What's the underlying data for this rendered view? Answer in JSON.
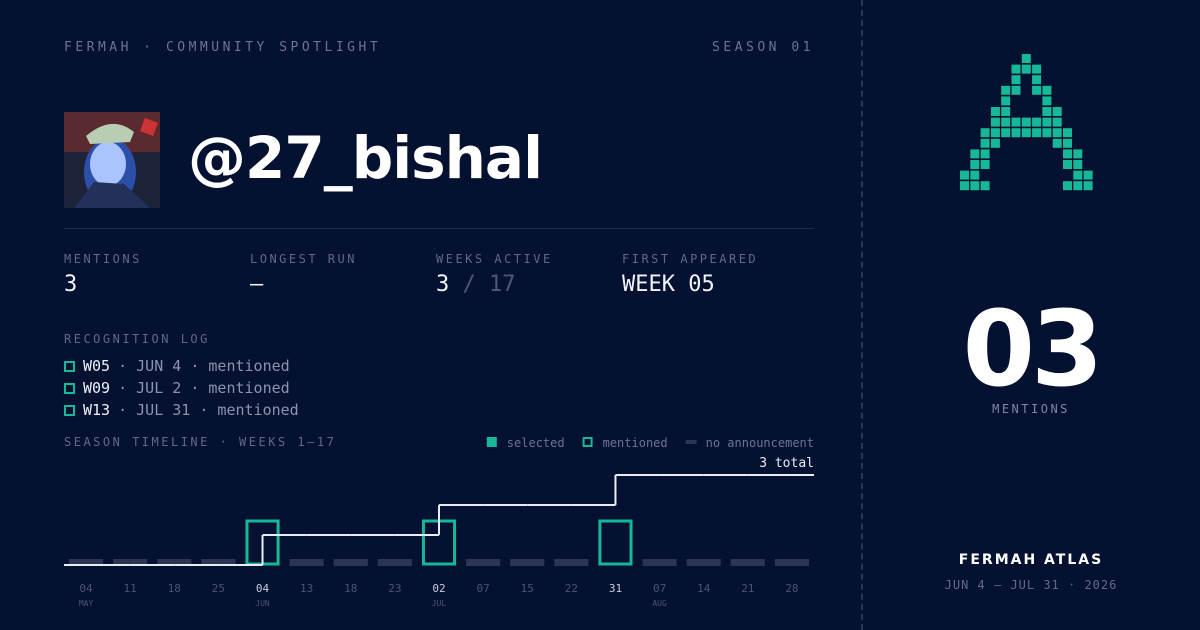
{
  "header": {
    "brand": "FERMAH · COMMUNITY SPOTLIGHT",
    "season": "SEASON 01"
  },
  "profile": {
    "handle": "@27_bishal"
  },
  "stats": [
    {
      "label": "MENTIONS",
      "value": "3"
    },
    {
      "label": "LONGEST RUN",
      "value": "—"
    },
    {
      "label": "WEEKS ACTIVE",
      "value": "3",
      "suffix": "/ 17"
    },
    {
      "label": "FIRST APPEARED",
      "value": "WEEK 05"
    }
  ],
  "log": {
    "title": "RECOGNITION LOG",
    "items": [
      {
        "week": "W05",
        "detail": "· JUN 4 · mentioned"
      },
      {
        "week": "W09",
        "detail": "· JUL 2 · mentioned"
      },
      {
        "week": "W13",
        "detail": "· JUL 31 · mentioned"
      }
    ]
  },
  "timeline": {
    "title": "SEASON TIMELINE · WEEKS 1–17",
    "legend": [
      {
        "label": "selected",
        "color": "#17b897",
        "shape": "filled"
      },
      {
        "label": "mentioned",
        "color": "#17b897",
        "shape": "outline"
      },
      {
        "label": "no announcement",
        "color": "#2a3654",
        "shape": "bar"
      }
    ],
    "total_label": "3 total",
    "ticks": [
      "04",
      "11",
      "18",
      "25",
      "04",
      "13",
      "18",
      "23",
      "02",
      "07",
      "15",
      "22",
      "31",
      "07",
      "14",
      "21",
      "28"
    ],
    "months": [
      "MAY",
      null,
      null,
      null,
      "JUN",
      null,
      null,
      null,
      "JUL",
      null,
      null,
      null,
      null,
      "AUG",
      null,
      null,
      null
    ],
    "status": [
      "no announcement",
      "no announcement",
      "no announcement",
      "no announcement",
      "mentioned",
      "no announcement",
      "no announcement",
      "no announcement",
      "mentioned",
      "no announcement",
      "no announcement",
      "no announcement",
      "mentioned",
      "no announcement",
      "no announcement",
      "no announcement",
      "no announcement"
    ],
    "cumulative": [
      0,
      0,
      0,
      0,
      1,
      1,
      1,
      1,
      2,
      2,
      2,
      2,
      3,
      3,
      3,
      3,
      3
    ]
  },
  "side": {
    "count": "03",
    "count_label": "MENTIONS",
    "name": "FERMAH ATLAS",
    "range": "JUN 4 — JUL 31 · 2026"
  }
}
